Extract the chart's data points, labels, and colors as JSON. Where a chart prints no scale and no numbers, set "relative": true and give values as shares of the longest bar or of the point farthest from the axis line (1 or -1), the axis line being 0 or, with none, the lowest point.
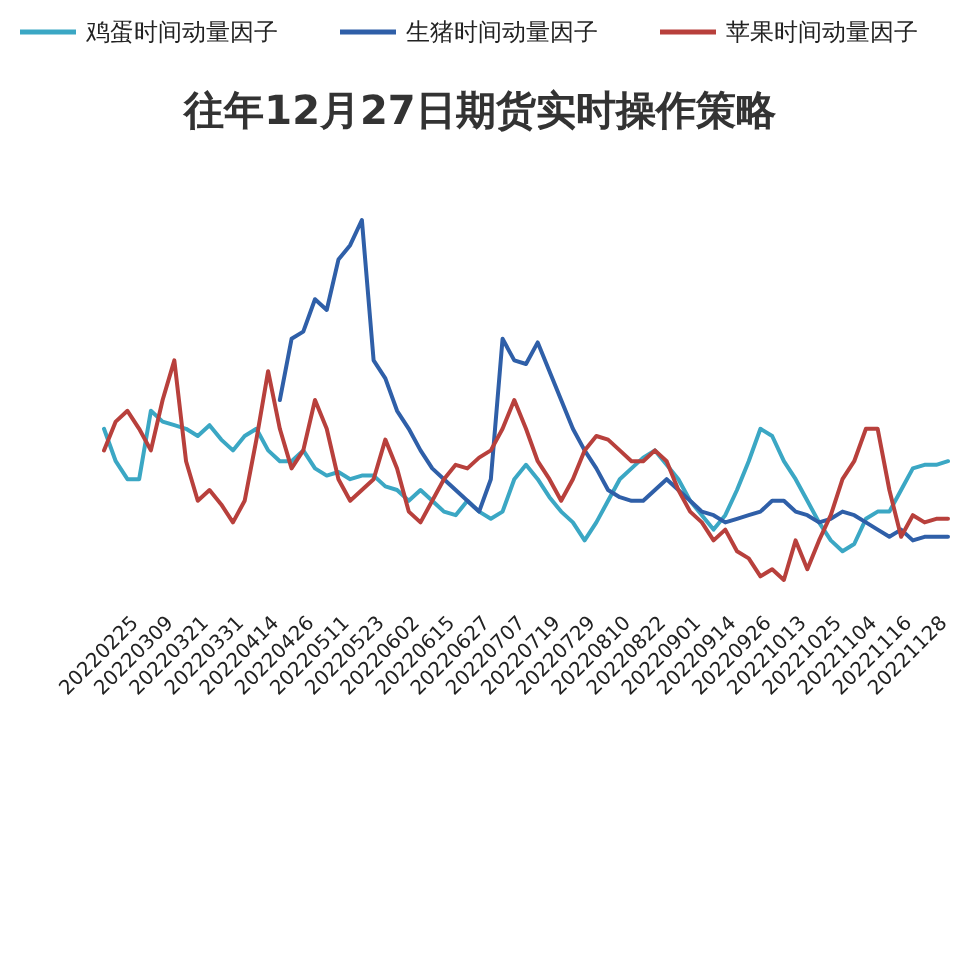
{
  "chart_data": {
    "type": "line",
    "title": "往年12月27日期货实时操作策略",
    "relative": true,
    "legend": "top",
    "categories": [
      null,
      null,
      null,
      "20220225",
      null,
      null,
      "20220309",
      null,
      null,
      "20220321",
      null,
      null,
      "20220331",
      null,
      null,
      "20220414",
      null,
      null,
      "20220426",
      null,
      null,
      "20220511",
      null,
      null,
      "20220523",
      null,
      null,
      "20220602",
      null,
      null,
      "20220615",
      null,
      null,
      "20220627",
      null,
      null,
      "20220707",
      null,
      null,
      "20220719",
      null,
      null,
      "20220729",
      null,
      null,
      "20220810",
      null,
      null,
      "20220822",
      null,
      null,
      "20220901",
      null,
      null,
      "20220914",
      null,
      null,
      "20220926",
      null,
      null,
      "20221013",
      null,
      null,
      "20221025",
      null,
      null,
      "20221104",
      null,
      null,
      "20221116",
      null,
      null,
      "20221128"
    ],
    "series": [
      {
        "name": "鸡蛋时间动量因子",
        "color": "#3ba7c4",
        "values": [
          0.42,
          0.33,
          0.28,
          0.28,
          0.47,
          0.44,
          0.43,
          0.42,
          0.4,
          0.43,
          0.39,
          0.36,
          0.4,
          0.42,
          0.36,
          0.33,
          0.33,
          0.36,
          0.31,
          0.29,
          0.3,
          0.28,
          0.29,
          0.29,
          0.26,
          0.25,
          0.22,
          0.25,
          0.22,
          0.19,
          0.18,
          0.22,
          0.19,
          0.17,
          0.19,
          0.28,
          0.32,
          0.28,
          0.23,
          0.19,
          0.16,
          0.11,
          0.16,
          0.22,
          0.28,
          0.31,
          0.34,
          0.36,
          0.32,
          0.28,
          0.22,
          0.18,
          0.14,
          0.18,
          0.25,
          0.33,
          0.42,
          0.4,
          0.33,
          0.28,
          0.22,
          0.16,
          0.11,
          0.08,
          0.1,
          0.17,
          0.19,
          0.19,
          0.25,
          0.31,
          0.32,
          0.32,
          0.33
        ]
      },
      {
        "name": "生猪时间动量因子",
        "color": "#2f5fa8",
        "values": [
          null,
          null,
          null,
          null,
          null,
          null,
          null,
          null,
          null,
          null,
          null,
          null,
          null,
          null,
          null,
          0.5,
          0.67,
          0.69,
          0.78,
          0.75,
          0.89,
          0.93,
          1,
          0.61,
          0.56,
          0.47,
          0.42,
          0.36,
          0.31,
          0.28,
          0.25,
          0.22,
          0.19,
          0.28,
          0.67,
          0.61,
          0.6,
          0.66,
          0.58,
          0.5,
          0.42,
          0.36,
          0.31,
          0.25,
          0.23,
          0.22,
          0.22,
          0.25,
          0.28,
          0.25,
          0.22,
          0.19,
          0.18,
          0.16,
          0.17,
          0.18,
          0.19,
          0.22,
          0.22,
          0.19,
          0.18,
          0.16,
          0.17,
          0.19,
          0.18,
          0.16,
          0.14,
          0.12,
          0.14,
          0.11,
          0.12,
          0.12,
          0.12
        ]
      },
      {
        "name": "苹果时间动量因子",
        "color": "#b8403c",
        "values": [
          0.36,
          0.44,
          0.47,
          0.42,
          0.36,
          0.5,
          0.61,
          0.33,
          0.22,
          0.25,
          0.21,
          0.16,
          0.22,
          0.39,
          0.58,
          0.42,
          0.31,
          0.36,
          0.5,
          0.42,
          0.28,
          0.22,
          0.25,
          0.28,
          0.39,
          0.31,
          0.19,
          0.16,
          0.22,
          0.28,
          0.32,
          0.31,
          0.34,
          0.36,
          0.42,
          0.5,
          0.42,
          0.33,
          0.28,
          0.22,
          0.28,
          0.36,
          0.4,
          0.39,
          0.36,
          0.33,
          0.33,
          0.36,
          0.33,
          0.25,
          0.19,
          0.16,
          0.11,
          0.14,
          0.08,
          0.06,
          0.01,
          0.03,
          0,
          0.11,
          0.03,
          0.11,
          0.18,
          0.28,
          0.33,
          0.42,
          0.42,
          0.25,
          0.12,
          0.18,
          0.16,
          0.17,
          0.17
        ]
      }
    ]
  }
}
